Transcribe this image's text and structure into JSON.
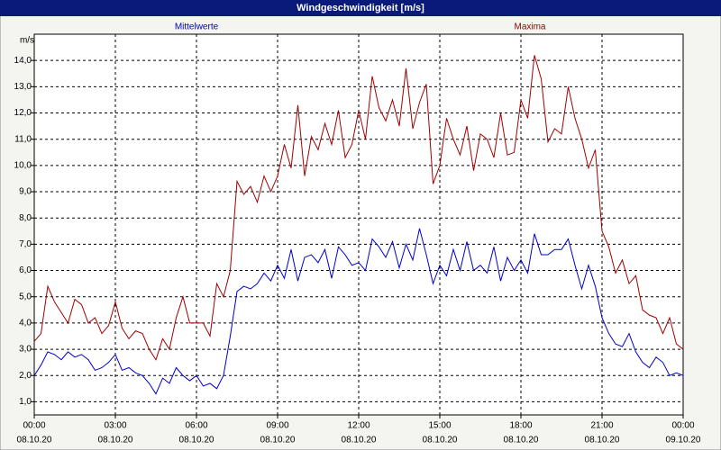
{
  "chart_data": {
    "type": "line",
    "title": "Windgeschwindigkeit [m/s]",
    "y_unit": "m/s",
    "grid": true,
    "x": [
      0,
      0.25,
      0.5,
      0.75,
      1,
      1.25,
      1.5,
      1.75,
      2,
      2.25,
      2.5,
      2.75,
      3,
      3.25,
      3.5,
      3.75,
      4,
      4.25,
      4.5,
      4.75,
      5,
      5.25,
      5.5,
      5.75,
      6,
      6.25,
      6.5,
      6.75,
      7,
      7.25,
      7.5,
      7.75,
      8,
      8.25,
      8.5,
      8.75,
      9,
      9.25,
      9.5,
      9.75,
      10,
      10.25,
      10.5,
      10.75,
      11,
      11.25,
      11.5,
      11.75,
      12,
      12.25,
      12.5,
      12.75,
      13,
      13.25,
      13.5,
      13.75,
      14,
      14.25,
      14.5,
      14.75,
      15,
      15.25,
      15.5,
      15.75,
      16,
      16.25,
      16.5,
      16.75,
      17,
      17.25,
      17.5,
      17.75,
      18,
      18.25,
      18.5,
      18.75,
      19,
      19.25,
      19.5,
      19.75,
      20,
      20.25,
      20.5,
      20.75,
      21,
      21.25,
      21.5,
      21.75,
      22,
      22.25,
      22.5,
      22.75,
      23,
      23.25,
      23.5,
      23.75,
      24
    ],
    "series": [
      {
        "name": "Mittelwerte",
        "color": "#0000c8",
        "values": [
          2.0,
          2.4,
          2.9,
          2.8,
          2.6,
          2.9,
          2.7,
          2.8,
          2.6,
          2.2,
          2.3,
          2.5,
          2.8,
          2.2,
          2.3,
          2.1,
          2.0,
          1.7,
          1.3,
          1.9,
          1.7,
          2.3,
          2.0,
          1.8,
          2.0,
          1.6,
          1.7,
          1.5,
          2.0,
          3.5,
          5.2,
          5.4,
          5.3,
          5.5,
          5.9,
          5.6,
          6.2,
          5.7,
          6.8,
          5.6,
          6.5,
          6.6,
          6.3,
          6.8,
          5.7,
          6.9,
          6.6,
          6.2,
          6.3,
          6.0,
          7.2,
          6.9,
          6.5,
          7.1,
          6.1,
          7.0,
          6.4,
          7.6,
          6.6,
          5.5,
          6.2,
          5.8,
          6.8,
          6.0,
          7.1,
          6.0,
          6.2,
          5.9,
          6.9,
          5.6,
          6.5,
          6.0,
          6.4,
          5.9,
          7.4,
          6.6,
          6.6,
          6.8,
          6.8,
          7.2,
          6.2,
          5.3,
          6.2,
          5.4,
          4.2,
          3.6,
          3.2,
          3.1,
          3.6,
          2.9,
          2.5,
          2.3,
          2.7,
          2.5,
          2.0,
          2.1,
          2.0
        ]
      },
      {
        "name": "Maxima",
        "color": "#a00000",
        "values": [
          3.3,
          3.6,
          5.4,
          4.8,
          4.4,
          4.0,
          4.9,
          4.7,
          4.0,
          4.2,
          3.6,
          3.9,
          4.8,
          3.8,
          3.4,
          3.7,
          3.6,
          3.0,
          2.6,
          3.4,
          3.0,
          4.2,
          5.0,
          4.0,
          4.0,
          4.0,
          3.5,
          5.5,
          5.0,
          6.0,
          9.4,
          8.9,
          9.2,
          8.6,
          9.6,
          9.0,
          9.6,
          10.8,
          9.9,
          12.3,
          9.6,
          11.1,
          10.6,
          11.6,
          10.8,
          12.1,
          10.3,
          10.8,
          12.1,
          11.0,
          13.4,
          12.2,
          11.7,
          12.5,
          11.5,
          13.7,
          11.4,
          12.4,
          13.1,
          9.3,
          10.0,
          11.8,
          11.0,
          10.4,
          11.5,
          9.8,
          11.2,
          11.0,
          10.3,
          12.0,
          10.4,
          10.5,
          12.5,
          11.8,
          14.2,
          13.3,
          10.9,
          11.4,
          11.2,
          13.0,
          11.8,
          11.0,
          9.9,
          10.6,
          7.5,
          6.9,
          5.9,
          6.4,
          5.5,
          5.8,
          4.5,
          4.3,
          4.2,
          3.6,
          4.2,
          3.2,
          3.0
        ]
      }
    ],
    "xlim": [
      0,
      24
    ],
    "xticks": [
      {
        "value": 0,
        "label": "00:00",
        "date": "08.10.20"
      },
      {
        "value": 3,
        "label": "03:00",
        "date": "08.10.20"
      },
      {
        "value": 6,
        "label": "06:00",
        "date": "08.10.20"
      },
      {
        "value": 9,
        "label": "09:00",
        "date": "08.10.20"
      },
      {
        "value": 12,
        "label": "12:00",
        "date": "08.10.20"
      },
      {
        "value": 15,
        "label": "15:00",
        "date": "08.10.20"
      },
      {
        "value": 18,
        "label": "18:00",
        "date": "08.10.20"
      },
      {
        "value": 21,
        "label": "21:00",
        "date": "08.10.20"
      },
      {
        "value": 24,
        "label": "00:00",
        "date": "09.10.20"
      }
    ],
    "ylim": [
      0.5,
      15
    ],
    "yticks": [
      {
        "value": 1,
        "label": "1,0"
      },
      {
        "value": 2,
        "label": "2,0"
      },
      {
        "value": 3,
        "label": "3,0"
      },
      {
        "value": 4,
        "label": "4,0"
      },
      {
        "value": 5,
        "label": "5,0"
      },
      {
        "value": 6,
        "label": "6,0"
      },
      {
        "value": 7,
        "label": "7,0"
      },
      {
        "value": 8,
        "label": "8,0"
      },
      {
        "value": 9,
        "label": "9,0"
      },
      {
        "value": 10,
        "label": "10,0"
      },
      {
        "value": 11,
        "label": "11,0"
      },
      {
        "value": 12,
        "label": "12,0"
      },
      {
        "value": 13,
        "label": "13,0"
      },
      {
        "value": 14,
        "label": "14,0"
      }
    ]
  }
}
